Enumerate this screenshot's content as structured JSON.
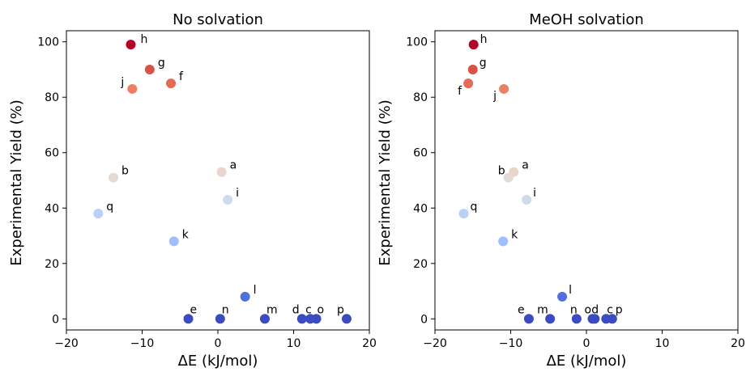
{
  "chart_data": [
    {
      "type": "scatter",
      "title": "No solvation",
      "xlabel": "ΔE (kJ/mol)",
      "ylabel": "Experimental Yield (%)",
      "xlim": [
        -20,
        20
      ],
      "ylim": [
        -4,
        104
      ],
      "xticks": [
        "−20",
        "−10",
        "0",
        "10",
        "20"
      ],
      "yticks": [
        "0",
        "20",
        "40",
        "60",
        "80",
        "100"
      ],
      "points": [
        {
          "label": "h",
          "x": -11.5,
          "y": 99,
          "color": "#b40426"
        },
        {
          "label": "g",
          "x": -9.0,
          "y": 90,
          "color": "#d75445"
        },
        {
          "label": "f",
          "x": -6.2,
          "y": 85,
          "color": "#e36b54"
        },
        {
          "label": "j",
          "x": -11.3,
          "y": 83,
          "color": "#ec7f63"
        },
        {
          "label": "b",
          "x": -13.8,
          "y": 51,
          "color": "#e2dad5"
        },
        {
          "label": "a",
          "x": 0.5,
          "y": 53,
          "color": "#e8d6cc"
        },
        {
          "label": "i",
          "x": 1.3,
          "y": 43,
          "color": "#cfdaea"
        },
        {
          "label": "q",
          "x": -15.8,
          "y": 38,
          "color": "#bad0f8"
        },
        {
          "label": "k",
          "x": -5.8,
          "y": 28,
          "color": "#9ebeff"
        },
        {
          "label": "l",
          "x": 3.6,
          "y": 8,
          "color": "#536edd"
        },
        {
          "label": "e",
          "x": -3.9,
          "y": 0,
          "color": "#3b4cc0"
        },
        {
          "label": "n",
          "x": 0.3,
          "y": 0,
          "color": "#3b4cc0"
        },
        {
          "label": "m",
          "x": 6.2,
          "y": 0,
          "color": "#3b4cc0"
        },
        {
          "label": "d",
          "x": 11.1,
          "y": 0,
          "color": "#3b4cc0"
        },
        {
          "label": "c",
          "x": 12.2,
          "y": 0,
          "color": "#3b4cc0"
        },
        {
          "label": "o",
          "x": 13.0,
          "y": 0,
          "color": "#3b4cc0"
        },
        {
          "label": "p",
          "x": 17.0,
          "y": 0,
          "color": "#3b4cc0"
        }
      ]
    },
    {
      "type": "scatter",
      "title": "MeOH solvation",
      "xlabel": "ΔE (kJ/mol)",
      "ylabel": "Experimental Yield (%)",
      "xlim": [
        -20,
        20
      ],
      "ylim": [
        -4,
        104
      ],
      "xticks": [
        "−20",
        "−10",
        "0",
        "10",
        "20"
      ],
      "yticks": [
        "0",
        "20",
        "40",
        "60",
        "80",
        "100"
      ],
      "points": [
        {
          "label": "h",
          "x": -14.9,
          "y": 99,
          "color": "#b40426"
        },
        {
          "label": "g",
          "x": -15.0,
          "y": 90,
          "color": "#d75445"
        },
        {
          "label": "f",
          "x": -15.6,
          "y": 85,
          "color": "#e36b54"
        },
        {
          "label": "j",
          "x": -10.9,
          "y": 83,
          "color": "#ec7f63"
        },
        {
          "label": "b",
          "x": -10.3,
          "y": 51,
          "color": "#e2dad5"
        },
        {
          "label": "a",
          "x": -9.6,
          "y": 53,
          "color": "#e8d6cc"
        },
        {
          "label": "i",
          "x": -7.9,
          "y": 43,
          "color": "#cfdaea"
        },
        {
          "label": "q",
          "x": -16.2,
          "y": 38,
          "color": "#bad0f8"
        },
        {
          "label": "k",
          "x": -11.0,
          "y": 28,
          "color": "#9ebeff"
        },
        {
          "label": "l",
          "x": -3.2,
          "y": 8,
          "color": "#536edd"
        },
        {
          "label": "e",
          "x": -7.6,
          "y": 0,
          "color": "#3b4cc0"
        },
        {
          "label": "m",
          "x": -4.8,
          "y": 0,
          "color": "#3b4cc0"
        },
        {
          "label": "n",
          "x": -1.3,
          "y": 0,
          "color": "#3b4cc0"
        },
        {
          "label": "o",
          "x": 0.8,
          "y": 0,
          "color": "#3b4cc0"
        },
        {
          "label": "d",
          "x": 1.1,
          "y": 0,
          "color": "#3b4cc0"
        },
        {
          "label": "c",
          "x": 2.6,
          "y": 0,
          "color": "#3b4cc0"
        },
        {
          "label": "p",
          "x": 3.4,
          "y": 0,
          "color": "#3b4cc0"
        }
      ]
    }
  ]
}
